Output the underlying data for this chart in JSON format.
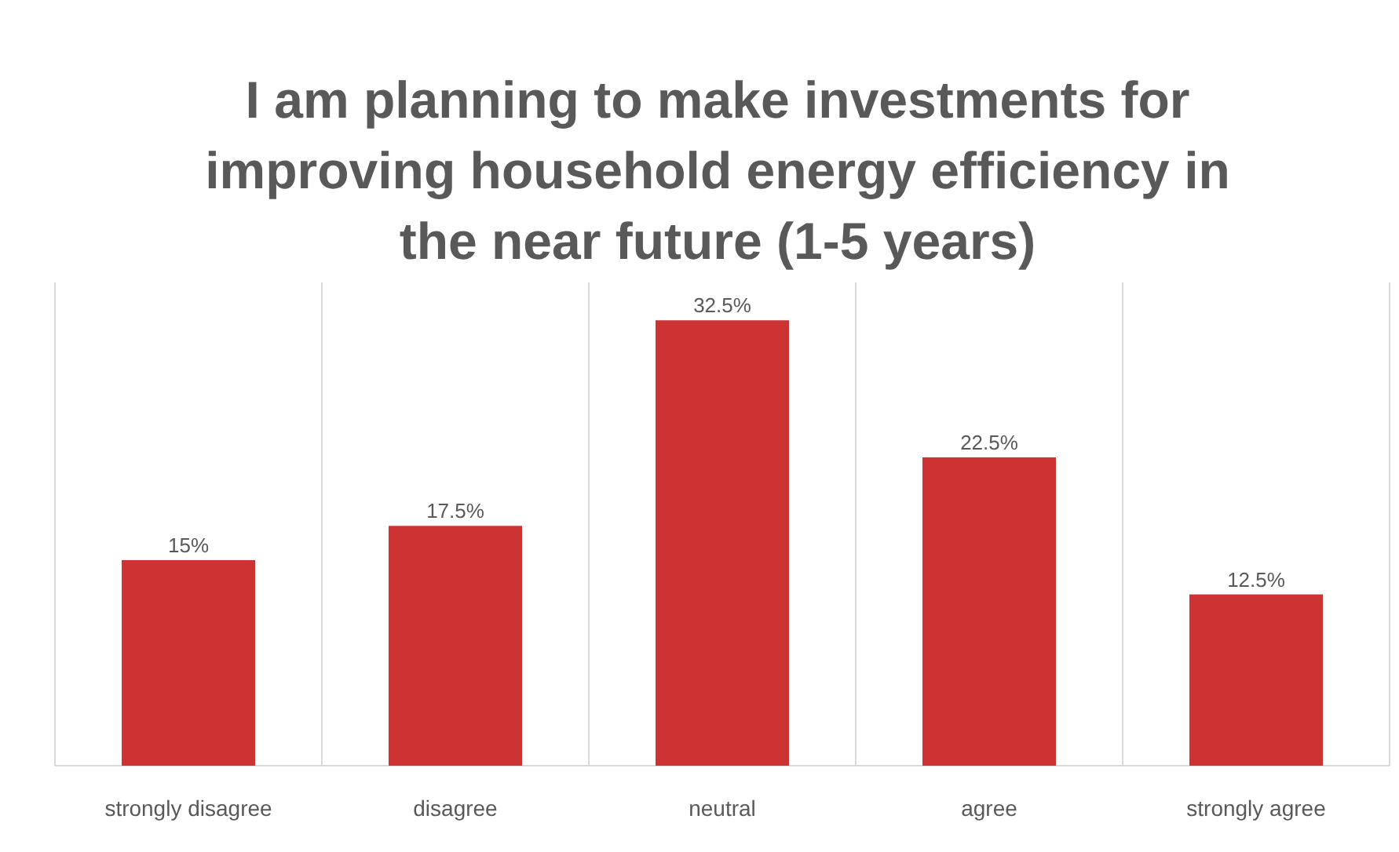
{
  "chart_data": {
    "type": "bar",
    "title": "I am planning to make investments for improving household energy efficiency in the near future (1-5 years)",
    "categories": [
      "strongly disagree",
      "disagree",
      "neutral",
      "agree",
      "strongly agree"
    ],
    "values": [
      15,
      17.5,
      32.5,
      22.5,
      12.5
    ],
    "value_labels": [
      "15%",
      "17.5%",
      "32.5%",
      "22.5%",
      "12.5%"
    ],
    "color": "#cc3333",
    "grid": "x"
  }
}
